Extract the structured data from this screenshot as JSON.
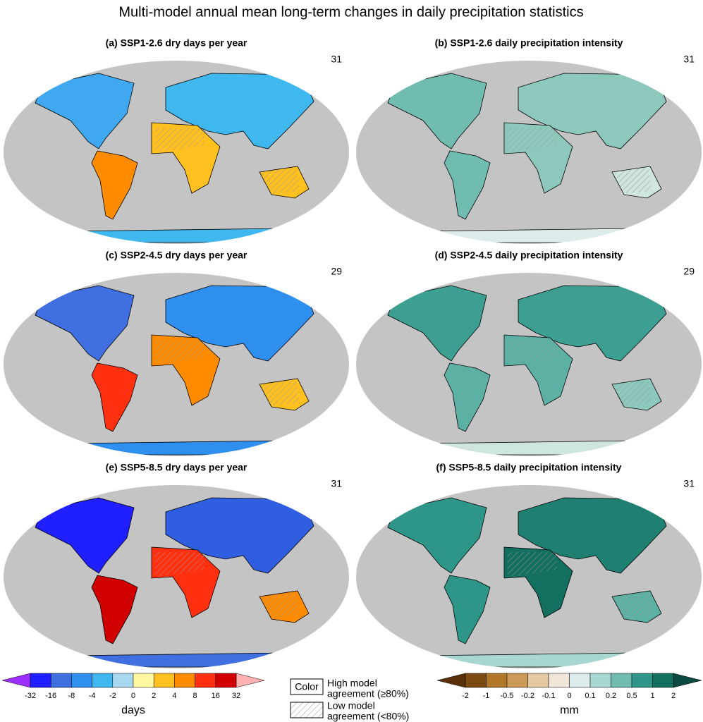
{
  "title": "Multi-model annual mean long-term changes in daily precipitation statistics",
  "panels": [
    {
      "label": "(a) SSP1-2.6 dry days per year",
      "models": "31"
    },
    {
      "label": "(b) SSP1-2.6 daily precipitation intensity",
      "models": "31"
    },
    {
      "label": "(c) SSP2-4.5 dry days per year",
      "models": "29"
    },
    {
      "label": "(d) SSP2-4.5 daily precipitation intensity",
      "models": "29"
    },
    {
      "label": "(e) SSP5-8.5 dry days per year",
      "models": "31"
    },
    {
      "label": "(f) SSP5-8.5 daily precipitation intensity",
      "models": "31"
    }
  ],
  "colorbars": [
    {
      "unit": "days",
      "ticks": [
        "-32",
        "-16",
        "-8",
        "-4",
        "-2",
        "0",
        "2",
        "4",
        "8",
        "16",
        "32"
      ],
      "low_color": "#9b30ff",
      "high_color": "#ffb0b0",
      "colors": [
        "#1f1fff",
        "#3f6fe0",
        "#2f8fef",
        "#3fb8f0",
        "#a8d8f0",
        "#fff8a0",
        "#ffc020",
        "#ff8c00",
        "#ff3010",
        "#d00000"
      ]
    },
    {
      "unit": "mm",
      "ticks": [
        "-2",
        "-1",
        "-0.5",
        "-0.2",
        "-0.1",
        "0",
        "0.1",
        "0.2",
        "0.5",
        "1",
        "2"
      ],
      "low_color": "#5a3008",
      "high_color": "#0a4a40",
      "colors": [
        "#7a4a10",
        "#b07828",
        "#cc9a58",
        "#e4c8a0",
        "#f0e6d8",
        "#dcecec",
        "#a8d6d0",
        "#70bcb0",
        "#2e9688",
        "#137060"
      ]
    }
  ],
  "legend": {
    "color_box": "Color",
    "high": [
      "High model",
      "agreement (≥80%)"
    ],
    "low": [
      "Low model",
      "agreement (<80%)"
    ]
  }
}
